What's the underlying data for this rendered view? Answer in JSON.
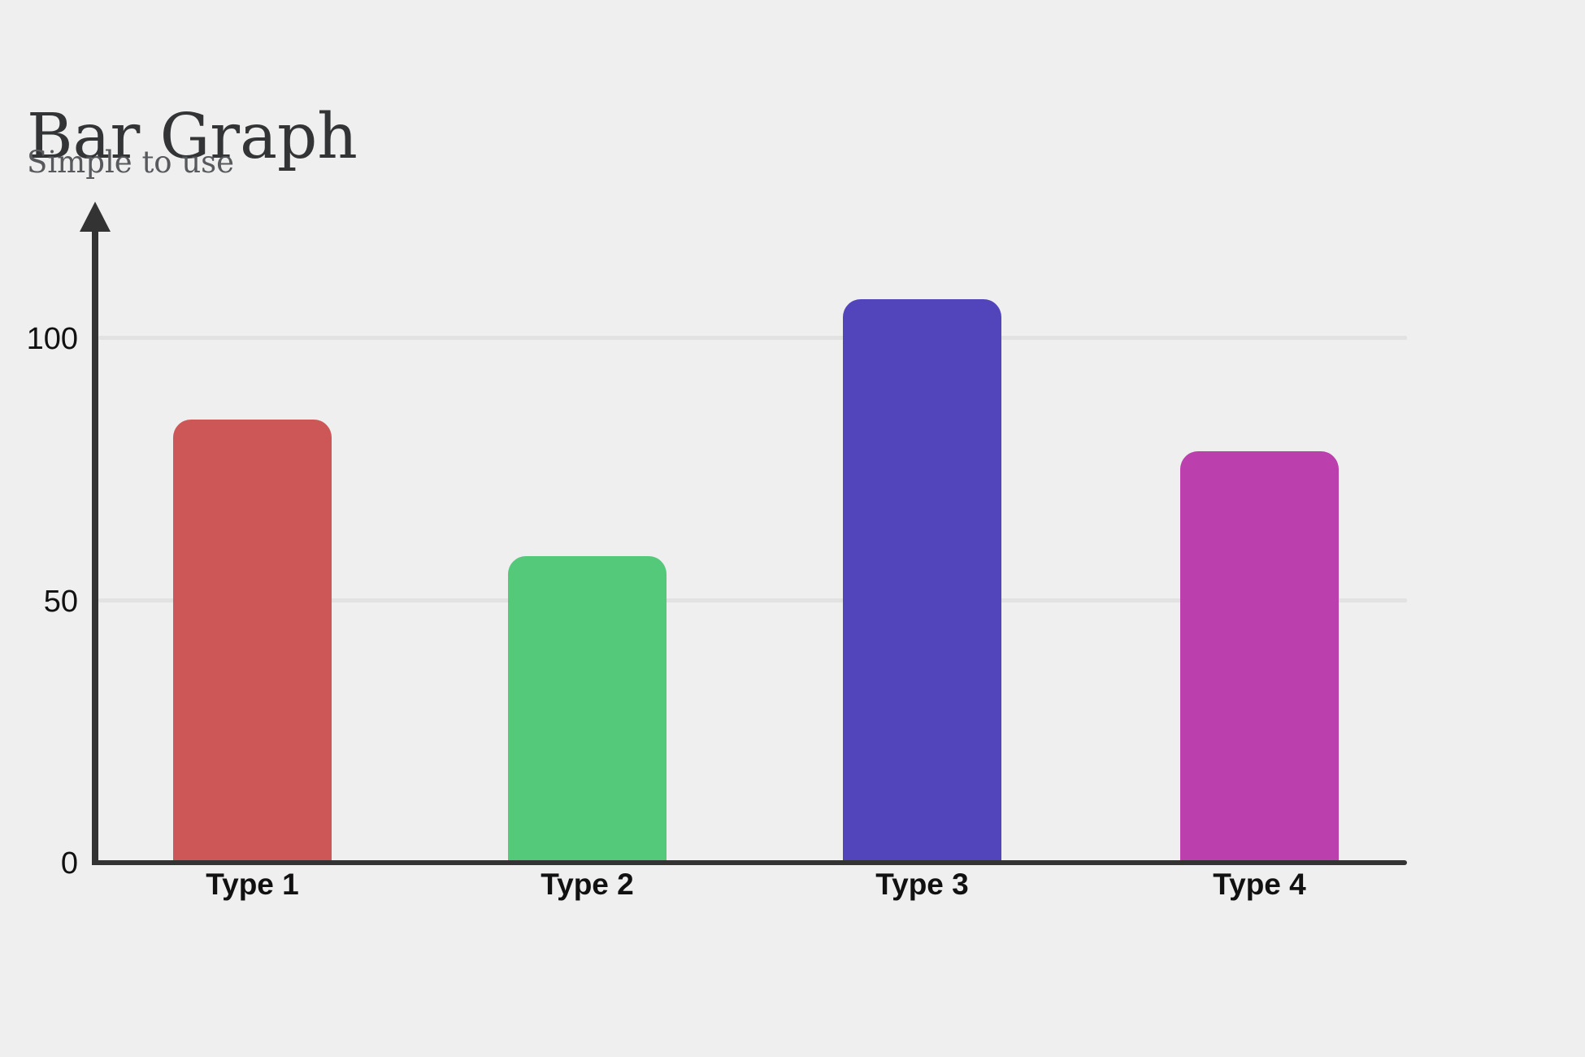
{
  "page": {
    "background_color": "#efefef"
  },
  "header": {
    "title": "Bar Graph",
    "subtitle": "Simple to use",
    "title_color": "#333436",
    "subtitle_color": "#57595c"
  },
  "chart_data": {
    "type": "bar",
    "title": "Bar Graph",
    "subtitle": "Simple to use",
    "categories": [
      "Type 1",
      "Type 2",
      "Type 3",
      "Type 4"
    ],
    "values": [
      84,
      58,
      107,
      78
    ],
    "bar_colors": [
      "#cd5757",
      "#55c97a",
      "#5245bb",
      "#bc3fae"
    ],
    "xlabel": "",
    "ylabel": "",
    "yticks": [
      0,
      50,
      100
    ],
    "y_tick_labels": [
      "0",
      "50",
      "100"
    ],
    "ylim": [
      0,
      125
    ],
    "grid": "horizontal",
    "gridline_color": "#e2e2e2",
    "axis_color": "#333333",
    "tick_label_color": "#111111",
    "legend": "none"
  }
}
